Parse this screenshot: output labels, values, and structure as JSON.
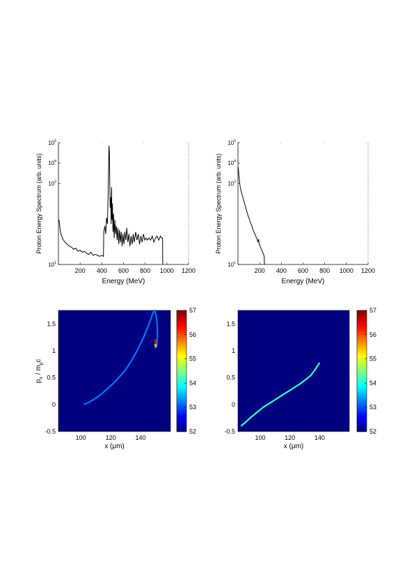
{
  "chart_data": [
    {
      "type": "line",
      "xlabel": "Energy (MeV)",
      "ylabel": "Proton Energy Spectrum (arb. units)",
      "xlim": [
        0,
        1200
      ],
      "ylog": true,
      "ylim_exp": [
        -1,
        5
      ],
      "x_ticks": [
        "200",
        "400",
        "600",
        "800",
        "1000",
        "1200"
      ],
      "y_ticks": [
        {
          "base": "10",
          "exp": "1"
        },
        {
          "base": "10",
          "exp": "3"
        },
        {
          "base": "10",
          "exp": "4"
        },
        {
          "base": "10",
          "exp": "5"
        }
      ],
      "y_tick_values": [
        -1,
        3,
        4,
        5
      ],
      "series": [
        {
          "color": "#000000",
          "points": [
            [
              5,
              1.2
            ],
            [
              20,
              0.55
            ],
            [
              40,
              0.25
            ],
            [
              60,
              0.1
            ],
            [
              80,
              0.0
            ],
            [
              100,
              -0.1
            ],
            [
              120,
              -0.15
            ],
            [
              140,
              -0.25
            ],
            [
              160,
              -0.2
            ],
            [
              180,
              -0.35
            ],
            [
              200,
              -0.3
            ],
            [
              220,
              -0.4
            ],
            [
              240,
              -0.35
            ],
            [
              260,
              -0.45
            ],
            [
              280,
              -0.5
            ],
            [
              300,
              -0.4
            ],
            [
              320,
              -0.55
            ],
            [
              340,
              -0.5
            ],
            [
              360,
              -0.55
            ],
            [
              380,
              -0.6
            ],
            [
              400,
              -0.55
            ],
            [
              415,
              -0.6
            ],
            [
              418,
              0.6
            ],
            [
              428,
              0.9
            ],
            [
              436,
              0.5
            ],
            [
              444,
              1.3
            ],
            [
              452,
              1.0
            ],
            [
              458,
              2.4
            ],
            [
              463,
              4.0
            ],
            [
              466,
              4.85
            ],
            [
              470,
              4.5
            ],
            [
              473,
              3.2
            ],
            [
              477,
              1.8
            ],
            [
              482,
              2.3
            ],
            [
              486,
              1.0
            ],
            [
              490,
              2.8
            ],
            [
              494,
              1.2
            ],
            [
              498,
              2.0
            ],
            [
              503,
              0.6
            ],
            [
              508,
              1.5
            ],
            [
              514,
              0.3
            ],
            [
              520,
              1.2
            ],
            [
              527,
              0.5
            ],
            [
              534,
              0.9
            ],
            [
              541,
              0.2
            ],
            [
              548,
              0.8
            ],
            [
              556,
              0.0
            ],
            [
              563,
              0.7
            ],
            [
              571,
              0.1
            ],
            [
              579,
              0.6
            ],
            [
              587,
              -0.1
            ],
            [
              595,
              0.5
            ],
            [
              604,
              0.0
            ],
            [
              612,
              0.6
            ],
            [
              621,
              0.2
            ],
            [
              630,
              0.8
            ],
            [
              640,
              0.1
            ],
            [
              650,
              0.5
            ],
            [
              660,
              -0.1
            ],
            [
              670,
              0.4
            ],
            [
              680,
              0.0
            ],
            [
              690,
              0.5
            ],
            [
              700,
              0.1
            ],
            [
              712,
              0.6
            ],
            [
              724,
              0.2
            ],
            [
              736,
              0.5
            ],
            [
              748,
              0.0
            ],
            [
              760,
              0.4
            ],
            [
              772,
              0.1
            ],
            [
              784,
              0.5
            ],
            [
              796,
              0.2
            ],
            [
              808,
              0.3
            ],
            [
              820,
              0.2
            ],
            [
              835,
              0.3
            ],
            [
              850,
              0.2
            ],
            [
              865,
              0.4
            ],
            [
              880,
              0.1
            ],
            [
              895,
              0.3
            ],
            [
              910,
              0.4
            ],
            [
              925,
              0.2
            ],
            [
              940,
              0.4
            ],
            [
              952,
              0.3
            ],
            [
              960,
              0.3
            ],
            [
              962,
              -1.0
            ]
          ]
        }
      ]
    },
    {
      "type": "line",
      "xlabel": "Energy (MeV)",
      "ylabel": "Proton Energy Spectrum (arb. units)",
      "xlim": [
        0,
        1200
      ],
      "ylog": true,
      "ylim_exp": [
        -1,
        5
      ],
      "x_ticks": [
        "200",
        "400",
        "600",
        "800",
        "1000",
        "1200"
      ],
      "y_ticks": [
        {
          "base": "10",
          "exp": "1"
        },
        {
          "base": "10",
          "exp": "3"
        },
        {
          "base": "10",
          "exp": "4"
        },
        {
          "base": "10",
          "exp": "5"
        }
      ],
      "y_tick_values": [
        -1,
        3,
        4,
        5
      ],
      "series": [
        {
          "color": "#000000",
          "points": [
            [
              2,
              3.8
            ],
            [
              6,
              3.55
            ],
            [
              10,
              3.3
            ],
            [
              15,
              3.05
            ],
            [
              20,
              2.85
            ],
            [
              26,
              2.7
            ],
            [
              32,
              2.55
            ],
            [
              40,
              2.4
            ],
            [
              48,
              2.25
            ],
            [
              56,
              2.1
            ],
            [
              64,
              1.95
            ],
            [
              72,
              1.8
            ],
            [
              80,
              1.65
            ],
            [
              88,
              1.5
            ],
            [
              96,
              1.35
            ],
            [
              104,
              1.25
            ],
            [
              112,
              1.1
            ],
            [
              120,
              1.0
            ],
            [
              128,
              0.9
            ],
            [
              136,
              0.75
            ],
            [
              144,
              0.65
            ],
            [
              152,
              0.55
            ],
            [
              160,
              0.45
            ],
            [
              168,
              0.35
            ],
            [
              176,
              0.25
            ],
            [
              184,
              0.1
            ],
            [
              190,
              0.25
            ],
            [
              196,
              0.0
            ],
            [
              204,
              -0.1
            ],
            [
              212,
              -0.2
            ],
            [
              220,
              -0.3
            ],
            [
              228,
              -0.4
            ],
            [
              236,
              -0.5
            ],
            [
              242,
              -0.6
            ],
            [
              244,
              -1.0
            ]
          ]
        }
      ]
    },
    {
      "type": "heatmap",
      "xlabel": "x (μm)",
      "ylabel": {
        "base": "p",
        "sub_x": "x",
        "mid": " / m",
        "sub_p": "p",
        "end": "c"
      },
      "xlim": [
        85,
        160
      ],
      "ylim": [
        -0.5,
        1.75
      ],
      "x_ticks": [
        100,
        120,
        140
      ],
      "y_ticks": [
        -0.5,
        0,
        0.5,
        1,
        1.5
      ],
      "y_tick_labels": [
        "-0.5",
        "0",
        "0.5",
        "1",
        "1.5"
      ],
      "x_tick_labels": [
        "100",
        "120",
        "140"
      ],
      "colorbar": {
        "min": 52,
        "max": 57,
        "ticks": [
          "52",
          "53",
          "54",
          "55",
          "56",
          "57"
        ],
        "colormap": "jet"
      },
      "background_value": 52,
      "curve": {
        "value": 53.2,
        "points": [
          [
            102,
            0.0
          ],
          [
            106,
            0.05
          ],
          [
            110,
            0.12
          ],
          [
            114,
            0.2
          ],
          [
            118,
            0.3
          ],
          [
            122,
            0.4
          ],
          [
            126,
            0.52
          ],
          [
            130,
            0.65
          ],
          [
            134,
            0.82
          ],
          [
            138,
            1.02
          ],
          [
            142,
            1.25
          ],
          [
            145,
            1.45
          ],
          [
            147,
            1.6
          ],
          [
            148.5,
            1.72
          ],
          [
            149.5,
            1.75
          ],
          [
            150.5,
            1.65
          ],
          [
            151.2,
            1.45
          ],
          [
            151.2,
            1.25
          ],
          [
            150.8,
            1.1
          ],
          [
            150.2,
            1.05
          ]
        ]
      },
      "hot_spots": [
        {
          "x": 149.8,
          "y": 1.18,
          "value": 56.5
        },
        {
          "x": 150.0,
          "y": 1.1,
          "value": 55.5
        }
      ]
    },
    {
      "type": "heatmap",
      "xlabel": "x (μm)",
      "ylabel": "",
      "xlim": [
        85,
        160
      ],
      "ylim": [
        -0.5,
        1.75
      ],
      "x_ticks": [
        100,
        120,
        140
      ],
      "y_ticks": [
        -0.5,
        0,
        0.5,
        1,
        1.5
      ],
      "y_tick_labels": [
        "-0.5",
        "0",
        "0.5",
        "1",
        "1.5"
      ],
      "x_tick_labels": [
        "100",
        "120",
        "140"
      ],
      "colorbar": {
        "min": 52,
        "max": 57,
        "ticks": [
          "52",
          "53",
          "54",
          "55",
          "56",
          "57"
        ],
        "colormap": "jet"
      },
      "background_value": 52,
      "curve": {
        "value": 54.2,
        "points": [
          [
            87,
            -0.4
          ],
          [
            90,
            -0.33
          ],
          [
            94,
            -0.23
          ],
          [
            98,
            -0.14
          ],
          [
            102,
            -0.05
          ],
          [
            106,
            0.02
          ],
          [
            110,
            0.09
          ],
          [
            114,
            0.16
          ],
          [
            118,
            0.23
          ],
          [
            122,
            0.3
          ],
          [
            126,
            0.37
          ],
          [
            130,
            0.45
          ],
          [
            134,
            0.54
          ],
          [
            137,
            0.65
          ],
          [
            140,
            0.78
          ]
        ]
      }
    }
  ]
}
